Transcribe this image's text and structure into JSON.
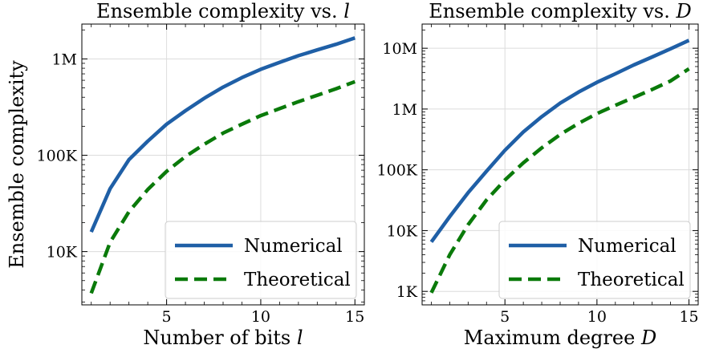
{
  "chart_data": [
    {
      "type": "line",
      "title_text": "Ensemble complexity vs.",
      "title_var": "l",
      "xlabel_text": "Number of bits",
      "xlabel_var": "l",
      "ylabel": "Ensemble complexity",
      "x_scale": "linear",
      "y_scale": "log",
      "xlim": [
        0.5,
        15.5
      ],
      "ylim": [
        2800,
        2300000
      ],
      "x_ticks": [
        {
          "v": 5,
          "label": "5"
        },
        {
          "v": 10,
          "label": "10"
        },
        {
          "v": 15,
          "label": "15"
        }
      ],
      "y_ticks": [
        {
          "v": 10000,
          "label": "10K"
        },
        {
          "v": 100000,
          "label": "100K"
        },
        {
          "v": 1000000,
          "label": "1M"
        }
      ],
      "grid": true,
      "legend_position": "bottom-right",
      "series": [
        {
          "name": "Numerical",
          "color": "#1f5fa6",
          "dash": "solid",
          "x": [
            1,
            2,
            3,
            4,
            5,
            6,
            7,
            8,
            9,
            10,
            11,
            12,
            13,
            14,
            15
          ],
          "y": [
            16000,
            45000,
            90000,
            140000,
            210000,
            290000,
            390000,
            510000,
            640000,
            780000,
            920000,
            1080000,
            1240000,
            1420000,
            1650000
          ]
        },
        {
          "name": "Theoretical",
          "color": "#0a7a0a",
          "dash": "dashed",
          "x": [
            1,
            2,
            3,
            4,
            5,
            6,
            7,
            8,
            9,
            10,
            11,
            12,
            13,
            14,
            15
          ],
          "y": [
            3700,
            12500,
            26000,
            44000,
            68000,
            97000,
            130000,
            170000,
            210000,
            258000,
            305000,
            360000,
            420000,
            490000,
            580000
          ]
        }
      ]
    },
    {
      "type": "line",
      "title_text": "Ensemble complexity vs.",
      "title_var": "D",
      "xlabel_text": "Maximum degree",
      "xlabel_var": "D",
      "ylabel": "",
      "x_scale": "linear",
      "y_scale": "log",
      "xlim": [
        0.5,
        15.5
      ],
      "ylim": [
        600,
        25000000
      ],
      "x_ticks": [
        {
          "v": 5,
          "label": "5"
        },
        {
          "v": 10,
          "label": "10"
        },
        {
          "v": 15,
          "label": "15"
        }
      ],
      "y_ticks": [
        {
          "v": 1000,
          "label": "1K"
        },
        {
          "v": 10000,
          "label": "10K"
        },
        {
          "v": 100000,
          "label": "100K"
        },
        {
          "v": 1000000,
          "label": "1M"
        },
        {
          "v": 10000000,
          "label": "10M"
        }
      ],
      "grid": true,
      "legend_position": "bottom-right",
      "series": [
        {
          "name": "Numerical",
          "color": "#1f5fa6",
          "dash": "solid",
          "x": [
            1,
            2,
            3,
            4,
            5,
            6,
            7,
            8,
            9,
            10,
            11,
            12,
            13,
            14,
            15
          ],
          "y": [
            6500,
            17000,
            42000,
            95000,
            210000,
            420000,
            750000,
            1250000,
            1900000,
            2750000,
            3800000,
            5300000,
            7200000,
            9800000,
            13500000
          ]
        },
        {
          "name": "Theoretical",
          "color": "#0a7a0a",
          "dash": "dashed",
          "x": [
            1,
            2,
            3,
            4,
            5,
            6,
            7,
            8,
            9,
            10,
            11,
            12,
            13,
            14,
            15
          ],
          "y": [
            950,
            4000,
            12500,
            32000,
            68000,
            130000,
            230000,
            380000,
            580000,
            840000,
            1150000,
            1550000,
            2100000,
            2900000,
            4600000
          ]
        }
      ]
    }
  ]
}
